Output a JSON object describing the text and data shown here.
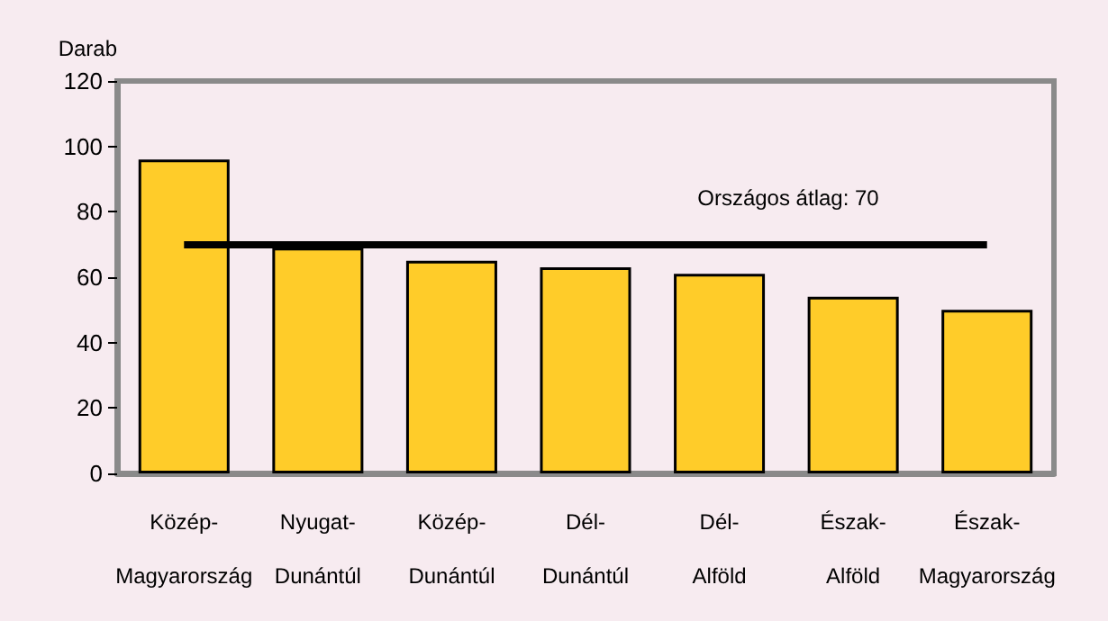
{
  "chart_data": {
    "type": "bar",
    "ylabel": "Darab",
    "categories": [
      "Közép-\nMagyarország",
      "Nyugat-\nDunántúl",
      "Közép-\nDunántúl",
      "Dél-\nDunántúl",
      "Dél-\nAlföld",
      "Észak-\nAlföld",
      "Észak-\nMagyarország"
    ],
    "values": [
      96,
      69,
      65,
      63,
      61,
      54,
      50
    ],
    "color": "#ffcc29",
    "ylim": [
      0,
      120
    ],
    "yticks": [
      0,
      20,
      40,
      60,
      80,
      100,
      120
    ],
    "grid": false,
    "ref_lines": [
      {
        "axis": "y",
        "value": 70,
        "label": "Országos átlag: 70",
        "color": "#000000"
      }
    ]
  }
}
